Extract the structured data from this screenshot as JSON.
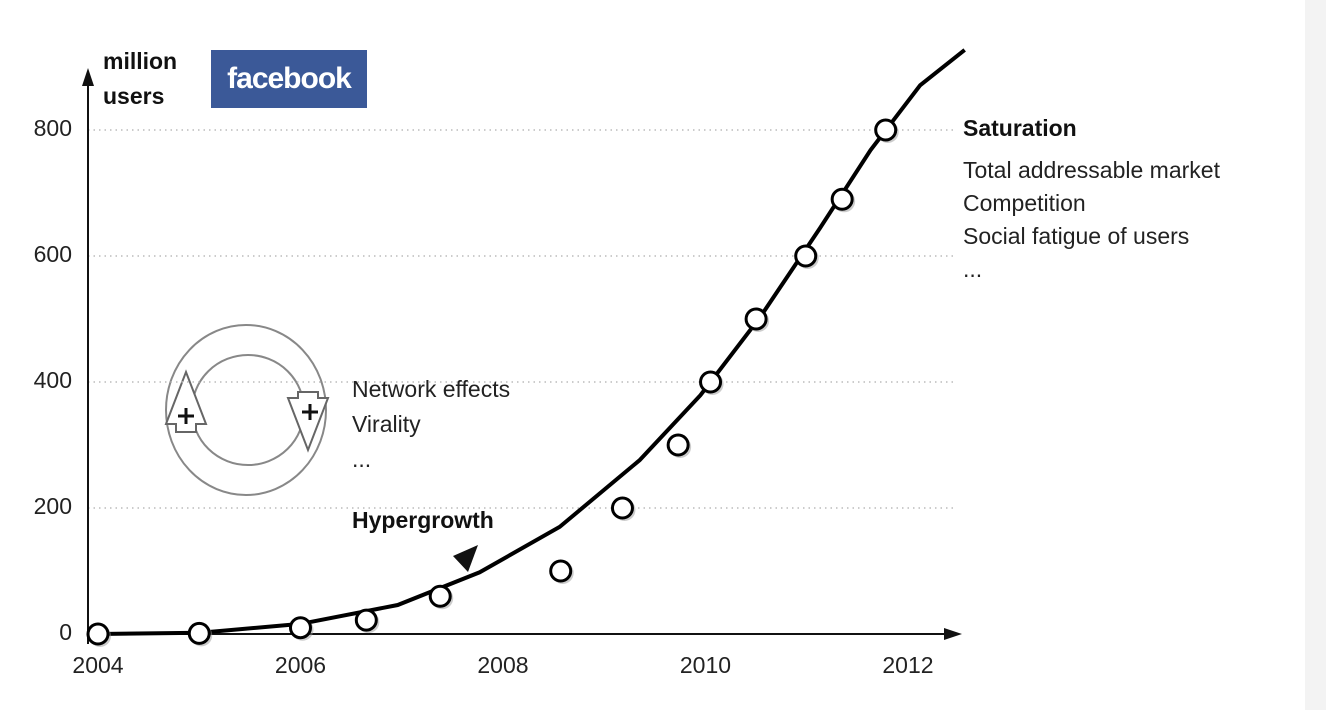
{
  "chart_data": {
    "type": "scatter",
    "ylabel": [
      "million",
      "users"
    ],
    "logo": "facebook",
    "x": [
      2004,
      2005,
      2006,
      2006.65,
      2007.38,
      2008.57,
      2009.18,
      2009.73,
      2010.05,
      2010.5,
      2010.99,
      2011.35,
      2011.78
    ],
    "series": [
      {
        "color": "#000000",
        "values": [
          0,
          1,
          10,
          22,
          60,
          100,
          200,
          300,
          400,
          500,
          600,
          690,
          800
        ]
      }
    ],
    "curve": {
      "color": "#000000",
      "x": [
        2004,
        2005.01,
        2006,
        2006.96,
        2007.77,
        2008.56,
        2009.35,
        2009.95,
        2010.54,
        2011.13,
        2011.63,
        2012.12,
        2012.56
      ],
      "values": [
        0,
        2,
        16,
        46,
        98,
        170,
        276,
        379,
        503,
        644,
        768,
        871,
        927
      ]
    },
    "xlim": [
      2004,
      2012.5
    ],
    "ylim": [
      0,
      890
    ],
    "xticks": [
      2004,
      2006,
      2008,
      2010,
      2012
    ],
    "yticks": [
      0,
      200,
      400,
      600,
      800
    ],
    "grid": true,
    "growth_drivers": [
      "Network effects",
      "Virality",
      "..."
    ],
    "hypergrowth_label": "Hypergrowth",
    "saturation_label": "Saturation",
    "saturation_factors": [
      "Total addressable market",
      "Competition",
      "Social fatigue of users",
      "..."
    ]
  }
}
